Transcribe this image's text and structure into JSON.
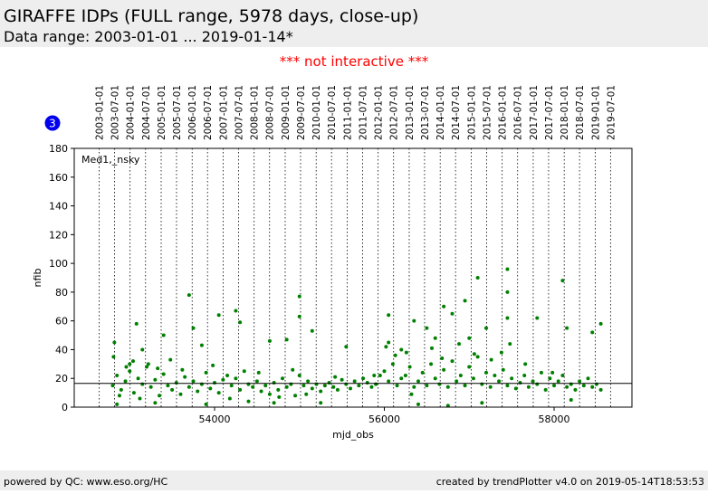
{
  "title": "GIRAFFE IDPs (FULL range, 5978 days, close-up)",
  "subtitle": "Data range: 2003-01-01 ... 2019-01-14*",
  "notice": "*** not interactive ***",
  "badge": "3",
  "footer_left": "powered by QC: www.eso.org/HC",
  "footer_right": "created by trendPlotter v4.0 on 2019-05-14T18:53:53",
  "chart_data": {
    "type": "scatter",
    "annotation": "Med1,_nsky",
    "xlabel": "mjd_obs",
    "ylabel": "nfib",
    "color": "#008000",
    "reference_line": 16.5,
    "xlim": [
      52347,
      58917
    ],
    "ylim": [
      0,
      180
    ],
    "xticks": [
      54000,
      56000,
      58000
    ],
    "yticks": [
      0,
      20,
      40,
      60,
      80,
      100,
      120,
      140,
      160,
      180
    ],
    "date_ticks": [
      {
        "value": 52640,
        "label": "2003-01-01"
      },
      {
        "value": 52821,
        "label": "2003-07-01"
      },
      {
        "value": 53005,
        "label": "2004-01-01"
      },
      {
        "value": 53187,
        "label": "2004-07-01"
      },
      {
        "value": 53371,
        "label": "2005-01-01"
      },
      {
        "value": 53552,
        "label": "2005-07-01"
      },
      {
        "value": 53736,
        "label": "2006-01-01"
      },
      {
        "value": 53917,
        "label": "2006-07-01"
      },
      {
        "value": 54101,
        "label": "2007-01-01"
      },
      {
        "value": 54282,
        "label": "2007-07-01"
      },
      {
        "value": 54466,
        "label": "2008-01-01"
      },
      {
        "value": 54648,
        "label": "2008-07-01"
      },
      {
        "value": 54832,
        "label": "2009-01-01"
      },
      {
        "value": 55013,
        "label": "2009-07-01"
      },
      {
        "value": 55197,
        "label": "2010-01-01"
      },
      {
        "value": 55378,
        "label": "2010-07-01"
      },
      {
        "value": 55562,
        "label": "2011-01-01"
      },
      {
        "value": 55743,
        "label": "2011-07-01"
      },
      {
        "value": 55927,
        "label": "2012-01-01"
      },
      {
        "value": 56109,
        "label": "2012-07-01"
      },
      {
        "value": 56293,
        "label": "2013-01-01"
      },
      {
        "value": 56474,
        "label": "2013-07-01"
      },
      {
        "value": 56658,
        "label": "2014-01-01"
      },
      {
        "value": 56839,
        "label": "2014-07-01"
      },
      {
        "value": 57023,
        "label": "2015-01-01"
      },
      {
        "value": 57204,
        "label": "2015-07-01"
      },
      {
        "value": 57388,
        "label": "2016-01-01"
      },
      {
        "value": 57570,
        "label": "2016-07-01"
      },
      {
        "value": 57754,
        "label": "2017-01-01"
      },
      {
        "value": 57935,
        "label": "2017-07-01"
      },
      {
        "value": 58119,
        "label": "2018-01-01"
      },
      {
        "value": 58300,
        "label": "2018-07-01"
      },
      {
        "value": 58484,
        "label": "2019-01-01"
      },
      {
        "value": 58665,
        "label": "2019-07-01"
      }
    ],
    "x": [
      52800,
      52850,
      52900,
      52950,
      53000,
      53050,
      53100,
      53150,
      53200,
      53250,
      53300,
      53350,
      53400,
      53450,
      53500,
      53550,
      53600,
      53650,
      53700,
      53750,
      53800,
      53850,
      53900,
      53950,
      54000,
      54050,
      54100,
      54150,
      54200,
      54250,
      54300,
      54350,
      54400,
      54450,
      54500,
      54550,
      54600,
      54650,
      54700,
      54750,
      54800,
      54850,
      54900,
      54950,
      55000,
      55050,
      55100,
      55150,
      55200,
      55250,
      55300,
      55350,
      55400,
      55450,
      55500,
      55550,
      55600,
      55650,
      55700,
      55750,
      55800,
      55850,
      55900,
      55950,
      56000,
      56050,
      56100,
      56150,
      56200,
      56250,
      56300,
      56350,
      56400,
      56450,
      56500,
      56550,
      56600,
      56650,
      56700,
      56750,
      56800,
      56850,
      56900,
      56950,
      57000,
      57050,
      57100,
      57150,
      57200,
      57250,
      57300,
      57350,
      57400,
      57450,
      57500,
      57550,
      57600,
      57650,
      57700,
      57750,
      57800,
      57850,
      57900,
      57950,
      58000,
      58050,
      58100,
      58150,
      58200,
      58250,
      58300,
      58350,
      58400,
      58450,
      58500,
      58550,
      52820,
      53000,
      53080,
      53150,
      53400,
      53700,
      53750,
      53850,
      54050,
      54250,
      54300,
      54650,
      54850,
      55000,
      55000,
      55150,
      55550,
      56050,
      56050,
      56200,
      56350,
      56500,
      56600,
      56700,
      56800,
      56950,
      57000,
      57100,
      57200,
      57450,
      57450,
      57450,
      57800,
      58100,
      58150,
      58450,
      58550,
      52850,
      53300,
      53900,
      54400,
      55250,
      56400,
      57150,
      58200,
      54700,
      56750,
      52810,
      52880,
      52960,
      53040,
      53120,
      53220,
      53330,
      53480,
      53620,
      53980,
      54180,
      54520,
      54760,
      54920,
      55080,
      55420,
      55880,
      56020,
      56130,
      56260,
      56320,
      56560,
      56680,
      56880,
      57060,
      57260,
      57380,
      57480,
      57660,
      57980
    ],
    "y": [
      15,
      22,
      12,
      18,
      25,
      10,
      20,
      16,
      28,
      14,
      19,
      8,
      23,
      15,
      12,
      17,
      9,
      21,
      14,
      18,
      11,
      16,
      24,
      13,
      17,
      10,
      19,
      22,
      15,
      20,
      12,
      25,
      16,
      14,
      18,
      11,
      15,
      9,
      17,
      12,
      20,
      14,
      16,
      8,
      22,
      15,
      18,
      13,
      16,
      11,
      15,
      17,
      14,
      12,
      19,
      16,
      13,
      18,
      15,
      20,
      17,
      14,
      16,
      22,
      25,
      18,
      30,
      15,
      20,
      22,
      28,
      14,
      18,
      24,
      15,
      30,
      20,
      16,
      26,
      14,
      32,
      18,
      22,
      15,
      28,
      20,
      35,
      16,
      24,
      14,
      22,
      18,
      26,
      15,
      20,
      13,
      17,
      22,
      14,
      18,
      16,
      24,
      12,
      20,
      15,
      18,
      22,
      14,
      16,
      12,
      18,
      15,
      20,
      14,
      16,
      12,
      45,
      30,
      58,
      40,
      50,
      78,
      55,
      43,
      64,
      67,
      59,
      46,
      47,
      77,
      63,
      53,
      42,
      64,
      45,
      40,
      60,
      55,
      48,
      70,
      65,
      74,
      48,
      90,
      55,
      96,
      80,
      62,
      62,
      88,
      55,
      52,
      58,
      2,
      3,
      2,
      4,
      3,
      2,
      3,
      5,
      3,
      1,
      35,
      8,
      28,
      32,
      6,
      30,
      27,
      33,
      26,
      29,
      6,
      24,
      7,
      26,
      9,
      21,
      22,
      42,
      36,
      38,
      9,
      41,
      34,
      44,
      37,
      33,
      38,
      44,
      30,
      24
    ]
  }
}
